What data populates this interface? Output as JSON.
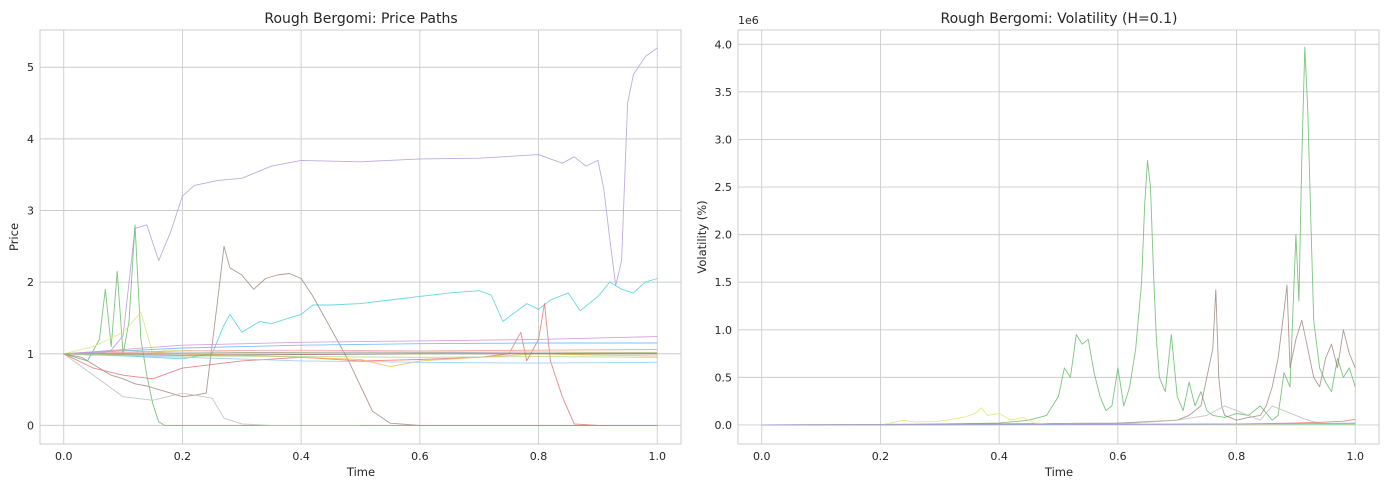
{
  "chart_data": [
    {
      "type": "line",
      "title": "Rough Bergomi: Price Paths",
      "xlabel": "Time",
      "ylabel": "Price",
      "xlim": [
        -0.04,
        1.04
      ],
      "ylim": [
        -0.26,
        5.52
      ],
      "xticks": [
        0.0,
        0.2,
        0.4,
        0.6,
        0.8,
        1.0
      ],
      "xtick_labels": [
        "0.0",
        "0.2",
        "0.4",
        "0.6",
        "0.8",
        "1.0"
      ],
      "yticks": [
        0,
        1,
        2,
        3,
        4,
        5
      ],
      "ytick_labels": [
        "0",
        "1",
        "2",
        "3",
        "4",
        "5"
      ],
      "grid": true,
      "series": [
        {
          "color": "#b39ddb",
          "x": [
            0,
            0.05,
            0.08,
            0.1,
            0.12,
            0.14,
            0.16,
            0.18,
            0.2,
            0.22,
            0.26,
            0.3,
            0.35,
            0.4,
            0.5,
            0.6,
            0.7,
            0.8,
            0.82,
            0.84,
            0.86,
            0.88,
            0.9,
            0.91,
            0.92,
            0.93,
            0.94,
            0.95,
            0.96,
            0.98,
            1.0
          ],
          "y": [
            1.0,
            0.98,
            1.05,
            1.25,
            2.75,
            2.8,
            2.3,
            2.7,
            3.2,
            3.35,
            3.42,
            3.45,
            3.62,
            3.7,
            3.68,
            3.72,
            3.73,
            3.78,
            3.72,
            3.66,
            3.75,
            3.62,
            3.7,
            3.3,
            2.6,
            1.95,
            2.3,
            4.5,
            4.9,
            5.15,
            5.27
          ]
        },
        {
          "color": "#4dd0e1",
          "x": [
            0,
            0.1,
            0.2,
            0.25,
            0.27,
            0.28,
            0.3,
            0.33,
            0.35,
            0.38,
            0.4,
            0.42,
            0.45,
            0.5,
            0.55,
            0.6,
            0.65,
            0.7,
            0.72,
            0.74,
            0.78,
            0.8,
            0.82,
            0.85,
            0.87,
            0.9,
            0.92,
            0.94,
            0.96,
            0.98,
            1.0
          ],
          "y": [
            1.0,
            0.97,
            0.93,
            1.0,
            1.4,
            1.55,
            1.3,
            1.45,
            1.42,
            1.5,
            1.55,
            1.68,
            1.68,
            1.7,
            1.75,
            1.8,
            1.85,
            1.88,
            1.82,
            1.45,
            1.7,
            1.62,
            1.75,
            1.85,
            1.6,
            1.8,
            2.0,
            1.9,
            1.85,
            2.0,
            2.05
          ]
        },
        {
          "color": "#a1887f",
          "x": [
            0,
            0.03,
            0.06,
            0.08,
            0.1,
            0.12,
            0.14,
            0.16,
            0.18,
            0.2,
            0.22,
            0.24,
            0.26,
            0.27,
            0.28,
            0.3,
            0.32,
            0.34,
            0.36,
            0.38,
            0.4,
            0.42,
            0.44,
            0.46,
            0.48,
            0.5,
            0.52,
            0.55,
            0.6,
            1.0
          ],
          "y": [
            1.0,
            0.95,
            0.8,
            0.7,
            0.65,
            0.58,
            0.55,
            0.5,
            0.45,
            0.4,
            0.42,
            0.45,
            1.8,
            2.5,
            2.2,
            2.1,
            1.9,
            2.05,
            2.1,
            2.12,
            2.05,
            1.8,
            1.5,
            1.2,
            0.9,
            0.55,
            0.2,
            0.03,
            0.0,
            0.0
          ]
        },
        {
          "color": "#e57373",
          "x": [
            0,
            0.05,
            0.1,
            0.15,
            0.2,
            0.3,
            0.4,
            0.5,
            0.6,
            0.7,
            0.75,
            0.77,
            0.78,
            0.8,
            0.81,
            0.82,
            0.84,
            0.86,
            0.9,
            1.0
          ],
          "y": [
            1.0,
            0.8,
            0.7,
            0.65,
            0.8,
            0.9,
            0.95,
            0.9,
            0.92,
            0.95,
            1.0,
            1.3,
            0.9,
            1.2,
            1.7,
            0.9,
            0.4,
            0.02,
            0.0,
            0.0
          ]
        },
        {
          "color": "#66bb6a",
          "x": [
            0,
            0.04,
            0.06,
            0.07,
            0.08,
            0.09,
            0.1,
            0.11,
            0.12,
            0.13,
            0.14,
            0.15,
            0.16,
            0.17,
            0.2,
            0.5,
            1.0
          ],
          "y": [
            1.0,
            0.9,
            1.2,
            1.9,
            1.1,
            2.15,
            1.0,
            1.45,
            2.8,
            1.2,
            0.7,
            0.3,
            0.05,
            0.0,
            0.0,
            0.0,
            0.0
          ]
        },
        {
          "color": "#bdbdbd",
          "x": [
            0,
            0.05,
            0.1,
            0.15,
            0.2,
            0.25,
            0.27,
            0.3,
            0.35,
            0.4,
            0.45,
            0.5
          ],
          "y": [
            1.0,
            0.7,
            0.4,
            0.35,
            0.45,
            0.38,
            0.1,
            0.02,
            0.0,
            0.0,
            0.0,
            0.0
          ]
        },
        {
          "color": "#dce775",
          "x": [
            0,
            0.05,
            0.1,
            0.13,
            0.15,
            0.17,
            0.2,
            0.3,
            0.4,
            0.5,
            0.6,
            0.7,
            0.8,
            0.9,
            1.0
          ],
          "y": [
            1.0,
            1.1,
            1.3,
            1.58,
            1.0,
            1.05,
            1.05,
            1.02,
            1.02,
            1.03,
            1.02,
            1.04,
            1.03,
            1.02,
            1.02
          ]
        },
        {
          "color": "#ffb74d",
          "x": [
            0,
            0.1,
            0.2,
            0.3,
            0.4,
            0.5,
            0.55,
            0.6,
            0.7,
            0.8,
            0.9,
            1.0
          ],
          "y": [
            1.0,
            1.05,
            1.0,
            0.98,
            0.95,
            0.92,
            0.82,
            0.9,
            0.95,
            1.0,
            0.98,
            0.97
          ]
        },
        {
          "color": "#64b5f6",
          "x": [
            0,
            0.2,
            0.4,
            0.6,
            0.8,
            1.0
          ],
          "y": [
            1.0,
            1.08,
            1.12,
            1.14,
            1.15,
            1.15
          ]
        },
        {
          "color": "#ce93d8",
          "x": [
            0,
            0.2,
            0.4,
            0.6,
            0.8,
            1.0
          ],
          "y": [
            1.0,
            1.12,
            1.16,
            1.18,
            1.2,
            1.24
          ]
        },
        {
          "color": "#90caf9",
          "x": [
            0,
            0.2,
            0.4,
            0.6,
            0.8,
            1.0
          ],
          "y": [
            1.0,
            0.95,
            0.9,
            0.88,
            0.87,
            0.88
          ]
        },
        {
          "color": "#ef9a9a",
          "x": [
            0,
            0.2,
            0.4,
            0.6,
            0.8,
            1.0
          ],
          "y": [
            1.0,
            1.04,
            1.05,
            1.04,
            1.05,
            1.06
          ]
        },
        {
          "color": "#8d6e63",
          "x": [
            0,
            0.2,
            0.4,
            0.6,
            0.8,
            1.0
          ],
          "y": [
            1.0,
            0.98,
            0.99,
            1.0,
            1.0,
            1.0
          ]
        },
        {
          "color": "#9e9e9e",
          "x": [
            0,
            0.2,
            0.4,
            0.6,
            0.8,
            1.0
          ],
          "y": [
            1.0,
            1.01,
            1.02,
            1.02,
            1.01,
            1.01
          ]
        },
        {
          "color": "#aed581",
          "x": [
            0,
            0.2,
            0.4,
            0.6,
            0.8,
            1.0
          ],
          "y": [
            1.0,
            0.97,
            0.96,
            0.95,
            0.96,
            0.95
          ]
        }
      ]
    },
    {
      "type": "line",
      "title": "Rough Bergomi: Volatility (H=0.1)",
      "xlabel": "Time",
      "ylabel": "Volatility (%)",
      "offset_label": "1e6",
      "xlim": [
        -0.04,
        1.04
      ],
      "ylim": [
        -0.2,
        4.15
      ],
      "xticks": [
        0.0,
        0.2,
        0.4,
        0.6,
        0.8,
        1.0
      ],
      "xtick_labels": [
        "0.0",
        "0.2",
        "0.4",
        "0.6",
        "0.8",
        "1.0"
      ],
      "yticks": [
        0.0,
        0.5,
        1.0,
        1.5,
        2.0,
        2.5,
        3.0,
        3.5,
        4.0
      ],
      "ytick_labels": [
        "0.0",
        "0.5",
        "1.0",
        "1.5",
        "2.0",
        "2.5",
        "3.0",
        "3.5",
        "4.0"
      ],
      "grid": true,
      "series": [
        {
          "color": "#66bb6a",
          "x": [
            0,
            0.2,
            0.4,
            0.45,
            0.48,
            0.5,
            0.51,
            0.52,
            0.53,
            0.54,
            0.55,
            0.56,
            0.57,
            0.58,
            0.59,
            0.6,
            0.61,
            0.62,
            0.63,
            0.64,
            0.645,
            0.65,
            0.655,
            0.66,
            0.665,
            0.67,
            0.68,
            0.69,
            0.7,
            0.71,
            0.72,
            0.73,
            0.74,
            0.75,
            0.76,
            0.78,
            0.8,
            0.82,
            0.84,
            0.86,
            0.87,
            0.88,
            0.89,
            0.9,
            0.905,
            0.91,
            0.915,
            0.92,
            0.925,
            0.93,
            0.94,
            0.95,
            0.96,
            0.97,
            0.98,
            0.99,
            1.0
          ],
          "y": [
            0,
            0,
            0.02,
            0.05,
            0.1,
            0.3,
            0.6,
            0.5,
            0.95,
            0.85,
            0.9,
            0.55,
            0.3,
            0.15,
            0.2,
            0.6,
            0.2,
            0.4,
            0.8,
            1.5,
            2.3,
            2.78,
            2.5,
            1.6,
            0.9,
            0.5,
            0.35,
            0.95,
            0.3,
            0.15,
            0.45,
            0.2,
            0.35,
            0.15,
            0.1,
            0.08,
            0.12,
            0.1,
            0.2,
            0.05,
            0.1,
            0.55,
            0.4,
            2.0,
            1.3,
            2.8,
            3.97,
            3.3,
            2.2,
            1.1,
            0.6,
            0.45,
            0.35,
            0.7,
            0.5,
            0.6,
            0.4
          ]
        },
        {
          "color": "#a1887f",
          "x": [
            0,
            0.6,
            0.7,
            0.72,
            0.74,
            0.76,
            0.765,
            0.77,
            0.775,
            0.78,
            0.8,
            0.82,
            0.84,
            0.85,
            0.86,
            0.87,
            0.88,
            0.885,
            0.89,
            0.9,
            0.91,
            0.92,
            0.93,
            0.94,
            0.95,
            0.96,
            0.97,
            0.98,
            0.99,
            1.0
          ],
          "y": [
            0,
            0.02,
            0.05,
            0.1,
            0.2,
            0.8,
            1.42,
            0.5,
            0.2,
            0.1,
            0.05,
            0.08,
            0.1,
            0.2,
            0.4,
            0.7,
            1.2,
            1.47,
            0.6,
            0.9,
            1.1,
            0.8,
            0.5,
            0.4,
            0.7,
            0.85,
            0.6,
            1.0,
            0.75,
            0.6
          ]
        },
        {
          "color": "#bdbdbd",
          "x": [
            0,
            0.6,
            0.7,
            0.75,
            0.78,
            0.8,
            0.82,
            0.84,
            0.86,
            0.88,
            0.9,
            0.92,
            0.94,
            0.96,
            0.98,
            1.0
          ],
          "y": [
            0,
            0.01,
            0.05,
            0.1,
            0.2,
            0.15,
            0.1,
            0.05,
            0.2,
            0.15,
            0.1,
            0.05,
            0.02,
            0.01,
            0.01,
            0.01
          ]
        },
        {
          "color": "#dce775",
          "x": [
            0,
            0.2,
            0.24,
            0.26,
            0.3,
            0.34,
            0.36,
            0.37,
            0.38,
            0.4,
            0.42,
            0.44,
            0.46,
            0.5,
            0.6,
            1.0
          ],
          "y": [
            0,
            0,
            0.05,
            0.03,
            0.04,
            0.08,
            0.12,
            0.18,
            0.1,
            0.12,
            0.05,
            0.08,
            0.02,
            0.0,
            0.0,
            0.0
          ]
        },
        {
          "color": "#e57373",
          "x": [
            0,
            0.8,
            0.9,
            0.95,
            0.98,
            1.0
          ],
          "y": [
            0,
            0.01,
            0.02,
            0.03,
            0.04,
            0.06
          ]
        },
        {
          "color": "#4dd0e1",
          "x": [
            0,
            0.5,
            0.8,
            1.0
          ],
          "y": [
            0,
            0.005,
            0.01,
            0.01
          ]
        },
        {
          "color": "#b39ddb",
          "x": [
            0,
            0.5,
            0.8,
            1.0
          ],
          "y": [
            0,
            0.004,
            0.008,
            0.02
          ]
        }
      ]
    }
  ]
}
